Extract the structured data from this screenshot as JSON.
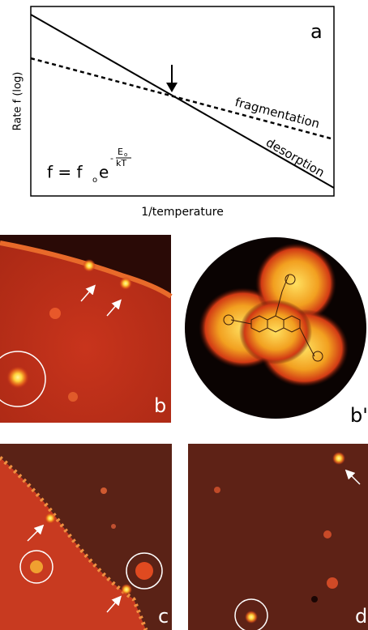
{
  "panel_a": {
    "label": "a",
    "y_axis_label": "Rate f (log)",
    "x_axis_label": "1/temperature",
    "curve_labels": [
      "fragmentation",
      "desorption"
    ],
    "formula": {
      "lhs": "f = f",
      "sub": "o",
      "base": "e",
      "minus": "-",
      "numerator": "E",
      "numerator_sub": "o",
      "denominator": "kT"
    }
  },
  "panels": {
    "b": "b",
    "b_prime": "b'",
    "c": "c",
    "d": "d"
  }
}
